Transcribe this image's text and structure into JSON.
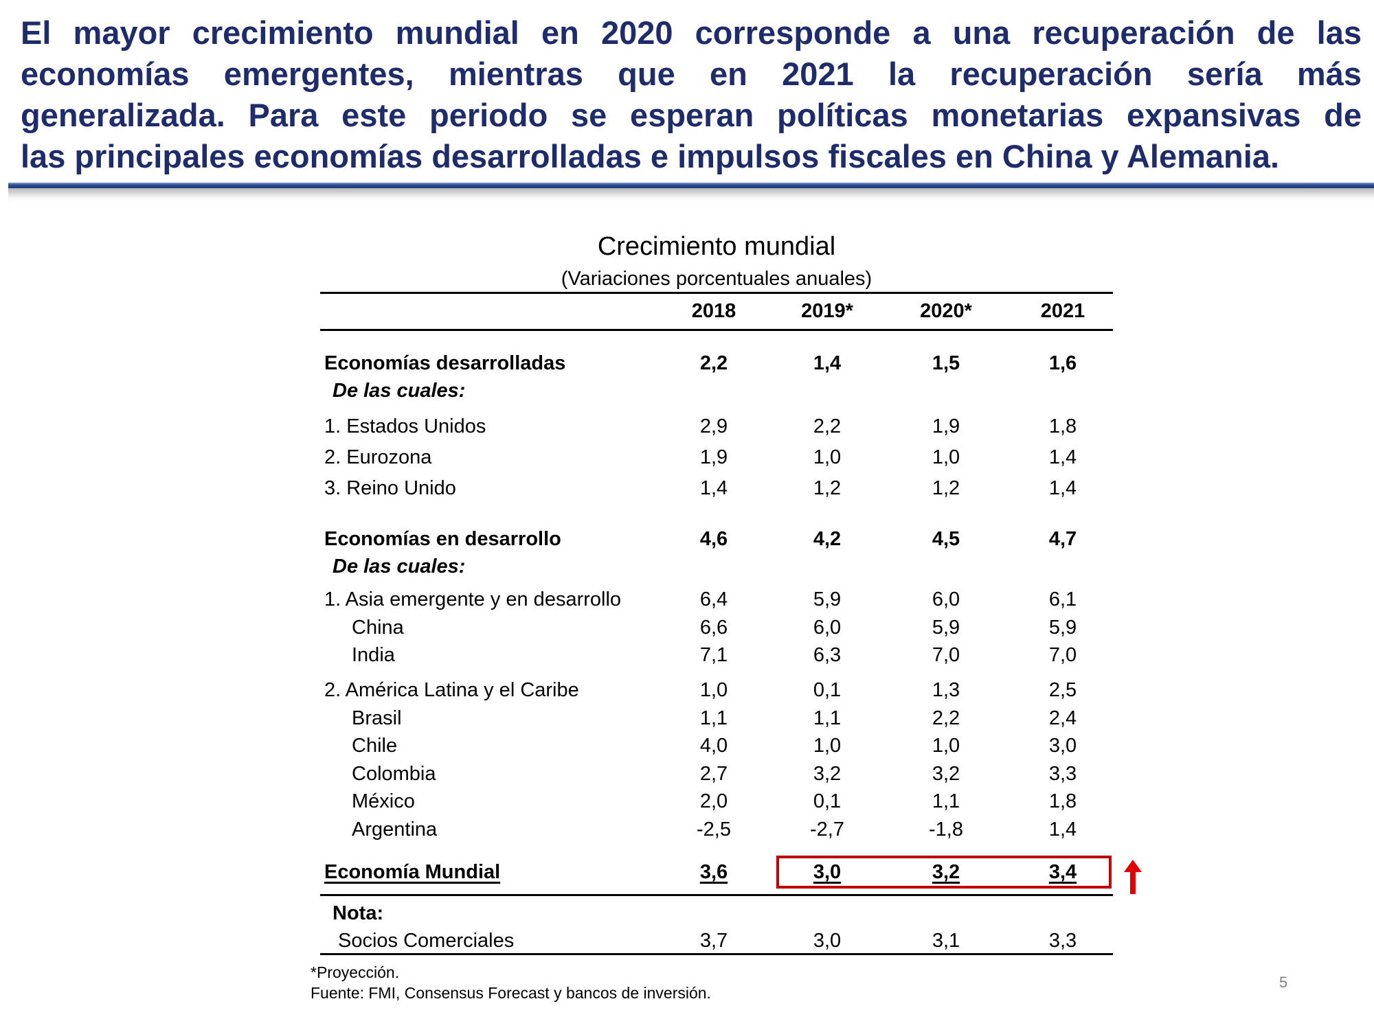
{
  "headline": {
    "lines": [
      "El mayor crecimiento mundial en 2020 corresponde a una recuperación de las",
      "economías emergentes, mientras que en 2021 la recuperación sería más",
      "generalizada. Para este periodo se esperan políticas monetarias expansivas de",
      "las principales economías desarrolladas e impulsos fiscales en China y Alemania."
    ],
    "color": "#1f2c6b"
  },
  "table": {
    "title": "Crecimiento mundial",
    "subtitle": "(Variaciones porcentuales anuales)",
    "columns": [
      "2018",
      "2019*",
      "2020*",
      "2021"
    ],
    "rows": [
      {
        "label": "Economías desarrolladas",
        "values": [
          "2,2",
          "1,4",
          "1,5",
          "1,6"
        ]
      },
      {
        "label": "De las cuales:"
      },
      {
        "label": "1. Estados Unidos",
        "values": [
          "2,9",
          "2,2",
          "1,9",
          "1,8"
        ]
      },
      {
        "label": "2. Eurozona",
        "values": [
          "1,9",
          "1,0",
          "1,0",
          "1,4"
        ]
      },
      {
        "label": "3. Reino Unido",
        "values": [
          "1,4",
          "1,2",
          "1,2",
          "1,4"
        ]
      },
      {
        "label": "Economías en desarrollo",
        "values": [
          "4,6",
          "4,2",
          "4,5",
          "4,7"
        ]
      },
      {
        "label": "De las cuales:"
      },
      {
        "label": "1. Asia emergente y en desarrollo",
        "values": [
          "6,4",
          "5,9",
          "6,0",
          "6,1"
        ]
      },
      {
        "label": "China",
        "values": [
          "6,6",
          "6,0",
          "5,9",
          "5,9"
        ]
      },
      {
        "label": "India",
        "values": [
          "7,1",
          "6,3",
          "7,0",
          "7,0"
        ]
      },
      {
        "label": "2. América Latina y el Caribe",
        "values": [
          "1,0",
          "0,1",
          "1,3",
          "2,5"
        ]
      },
      {
        "label": "Brasil",
        "values": [
          "1,1",
          "1,1",
          "2,2",
          "2,4"
        ]
      },
      {
        "label": "Chile",
        "values": [
          "4,0",
          "1,0",
          "1,0",
          "3,0"
        ]
      },
      {
        "label": "Colombia",
        "values": [
          "2,7",
          "3,2",
          "3,2",
          "3,3"
        ]
      },
      {
        "label": "México",
        "values": [
          "2,0",
          "0,1",
          "1,1",
          "1,8"
        ]
      },
      {
        "label": "Argentina",
        "values": [
          "-2,5",
          "-2,7",
          "-1,8",
          "1,4"
        ]
      },
      {
        "label": "Economía Mundial",
        "values": [
          "3,6",
          "3,0",
          "3,2",
          "3,4"
        ]
      },
      {
        "label": "Nota:"
      },
      {
        "label": "Socios Comerciales",
        "values": [
          "3,7",
          "3,0",
          "3,1",
          "3,3"
        ]
      }
    ],
    "highlight_color": "#c00000",
    "arrow_icon": "arrow-up-icon"
  },
  "footnotes": {
    "projection": "*Proyección.",
    "source": "Fuente: FMI, Consensus Forecast y bancos de inversión."
  },
  "page_number": "5"
}
